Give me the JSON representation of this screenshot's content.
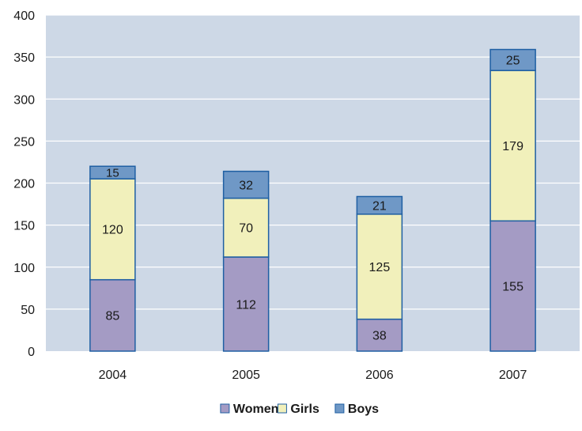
{
  "chart_data": {
    "type": "bar",
    "stacked": true,
    "title": "",
    "xlabel": "",
    "ylabel": "",
    "categories": [
      "2004",
      "2005",
      "2006",
      "2007"
    ],
    "series": [
      {
        "name": "Women",
        "values": [
          85,
          112,
          38,
          155
        ],
        "color": "#a49bc4"
      },
      {
        "name": "Girls",
        "values": [
          120,
          70,
          125,
          179
        ],
        "color": "#f1f0bb"
      },
      {
        "name": "Boys",
        "values": [
          15,
          32,
          21,
          25
        ],
        "color": "#6f98c6"
      }
    ],
    "ylim": [
      0,
      400
    ],
    "yticks": [
      0,
      50,
      100,
      150,
      200,
      250,
      300,
      350,
      400
    ],
    "grid": true,
    "legend": "bottom-center",
    "plot_background": "#cdd8e6",
    "bar_border_color": "#1f5fa3"
  }
}
